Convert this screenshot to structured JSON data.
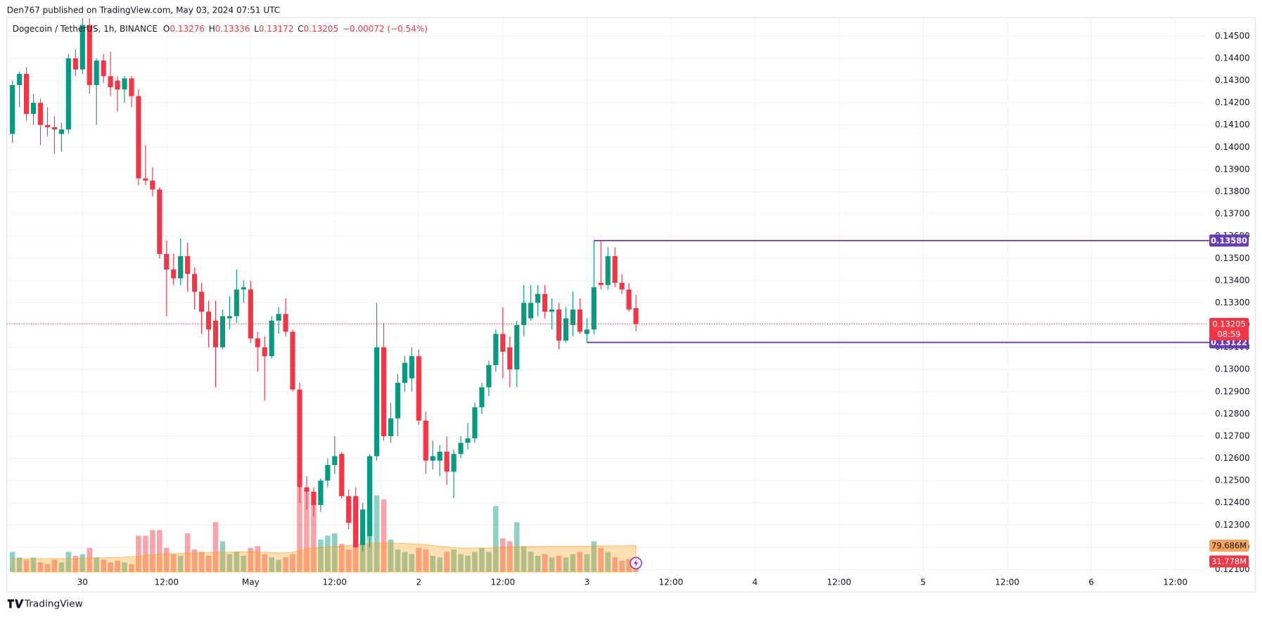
{
  "header": "Den767 published on TradingView.com, May 03, 2024 07:51 UTC",
  "footer": "TradingView",
  "chart_data": {
    "type": "candlestick",
    "title": "Dogecoin / TetherUS, 1h, BINANCE",
    "ohlc_letters": [
      "O",
      "H",
      "L",
      "C"
    ],
    "change": "−0.00072 (−0.54%)",
    "up_color": "#089981",
    "down_color": "#f23645",
    "grid": true,
    "x": [
      0,
      1,
      2,
      3,
      4,
      5,
      6,
      7,
      8,
      9,
      10,
      11,
      12,
      13,
      14,
      15,
      16,
      17,
      18,
      19,
      20,
      21,
      22,
      23,
      24,
      25,
      26,
      27,
      28,
      29,
      30,
      31,
      32,
      33,
      34,
      35,
      36,
      37,
      38,
      39,
      40,
      41,
      42,
      43,
      44,
      45,
      46,
      47,
      48,
      49,
      50,
      51,
      52,
      53,
      54,
      55,
      56,
      57,
      58,
      59,
      60,
      61,
      62,
      63,
      64,
      65,
      66,
      67,
      68,
      69,
      70,
      71,
      72,
      73,
      74,
      75,
      76,
      77,
      78,
      79,
      80,
      81,
      82,
      83,
      84,
      85,
      86,
      87,
      88,
      89
    ],
    "xlim": [
      -0.8,
      170.5
    ],
    "xticks": [
      {
        "value": 10,
        "label": "30"
      },
      {
        "value": 22,
        "label": "12:00"
      },
      {
        "value": 34,
        "label": "May"
      },
      {
        "value": 46,
        "label": "12:00"
      },
      {
        "value": 58,
        "label": "2"
      },
      {
        "value": 70,
        "label": "12:00"
      },
      {
        "value": 82,
        "label": "3"
      },
      {
        "value": 94,
        "label": "12:00"
      },
      {
        "value": 106,
        "label": "4"
      },
      {
        "value": 118,
        "label": "12:00"
      },
      {
        "value": 130,
        "label": "5"
      },
      {
        "value": 142,
        "label": "12:00"
      },
      {
        "value": 154,
        "label": "6"
      },
      {
        "value": 166,
        "label": "12:00"
      }
    ],
    "open": [
      0.1406,
      0.1428,
      0.1433,
      0.1415,
      0.142,
      0.141,
      0.1409,
      0.1406,
      0.1408,
      0.144,
      0.1435,
      0.1455,
      0.1428,
      0.1439,
      0.1432,
      0.143,
      0.1426,
      0.1431,
      0.1423,
      0.1386,
      0.1385,
      0.1381,
      0.1352,
      0.1345,
      0.1341,
      0.1351,
      0.1343,
      0.1335,
      0.1326,
      0.1322,
      0.131,
      0.1323,
      0.1324,
      0.1336,
      0.1336,
      0.1314,
      0.131,
      0.1306,
      0.1322,
      0.1325,
      0.1317,
      0.1291,
      0.1247,
      0.1245,
      0.1239,
      0.125,
      0.1257,
      0.1262,
      0.1243,
      0.1243,
      0.1221,
      0.1225,
      0.1261,
      0.131,
      0.127,
      0.1278,
      0.1294,
      0.1296,
      0.1306,
      0.1277,
      0.1259,
      0.1259,
      0.1263,
      0.1254,
      0.1262,
      0.1267,
      0.1269,
      0.1283,
      0.1292,
      0.1302,
      0.1316,
      0.131,
      0.13,
      0.132,
      0.1323,
      0.133,
      0.1334,
      0.1326,
      0.1327,
      0.1313,
      0.132,
      0.1327,
      0.1316,
      0.1318,
      0.1339,
      0.1338,
      0.1351,
      0.1339,
      0.1336,
      0.13276
    ],
    "high": [
      0.143,
      0.1434,
      0.1436,
      0.1424,
      0.1422,
      0.1418,
      0.1414,
      0.1411,
      0.1442,
      0.1444,
      0.1458,
      0.1458,
      0.144,
      0.1442,
      0.1443,
      0.1432,
      0.1432,
      0.1432,
      0.1426,
      0.1401,
      0.1391,
      0.1382,
      0.1358,
      0.1352,
      0.1359,
      0.1357,
      0.1346,
      0.1339,
      0.1331,
      0.1331,
      0.1327,
      0.1333,
      0.1345,
      0.134,
      0.134,
      0.1317,
      0.1315,
      0.1324,
      0.1328,
      0.1332,
      0.1318,
      0.1294,
      0.1252,
      0.1247,
      0.1251,
      0.126,
      0.127,
      0.1263,
      0.1246,
      0.1247,
      0.124,
      0.1262,
      0.133,
      0.1321,
      0.1285,
      0.1298,
      0.1306,
      0.131,
      0.1309,
      0.1281,
      0.1268,
      0.1266,
      0.127,
      0.1264,
      0.127,
      0.1276,
      0.1285,
      0.1294,
      0.1304,
      0.1318,
      0.1328,
      0.1315,
      0.1322,
      0.1338,
      0.1338,
      0.1338,
      0.1338,
      0.1332,
      0.133,
      0.1328,
      0.1335,
      0.1332,
      0.1323,
      0.1358,
      0.1358,
      0.1355,
      0.1355,
      0.1343,
      0.1339,
      0.13336
    ],
    "low": [
      0.1402,
      0.1418,
      0.1412,
      0.141,
      0.1401,
      0.1405,
      0.1397,
      0.1398,
      0.1406,
      0.1432,
      0.1433,
      0.1424,
      0.141,
      0.1429,
      0.1423,
      0.1416,
      0.142,
      0.1418,
      0.1383,
      0.1383,
      0.1378,
      0.135,
      0.1324,
      0.1338,
      0.1338,
      0.1335,
      0.1327,
      0.1316,
      0.131,
      0.1292,
      0.1309,
      0.1318,
      0.1321,
      0.133,
      0.1312,
      0.1299,
      0.1286,
      0.1305,
      0.1316,
      0.1315,
      0.129,
      0.124,
      0.1237,
      0.1234,
      0.1236,
      0.1247,
      0.1253,
      0.1242,
      0.1228,
      0.122,
      0.1218,
      0.122,
      0.1259,
      0.1268,
      0.1267,
      0.127,
      0.129,
      0.129,
      0.1275,
      0.1253,
      0.1255,
      0.1252,
      0.1248,
      0.1242,
      0.126,
      0.1264,
      0.1267,
      0.128,
      0.1288,
      0.1299,
      0.1296,
      0.1292,
      0.1292,
      0.1315,
      0.1322,
      0.1324,
      0.1323,
      0.1318,
      0.1309,
      0.1312,
      0.1315,
      0.1316,
      0.1312,
      0.1316,
      0.1336,
      0.1336,
      0.1337,
      0.1334,
      0.1326,
      0.13172
    ],
    "close": [
      0.1428,
      0.1433,
      0.1415,
      0.142,
      0.141,
      0.1409,
      0.1408,
      0.1408,
      0.144,
      0.1435,
      0.1455,
      0.1428,
      0.1439,
      0.1432,
      0.1427,
      0.1426,
      0.1431,
      0.1423,
      0.1386,
      0.1385,
      0.1381,
      0.1352,
      0.1345,
      0.1341,
      0.1351,
      0.1343,
      0.1335,
      0.1326,
      0.1318,
      0.131,
      0.1324,
      0.1324,
      0.1336,
      0.1337,
      0.1314,
      0.131,
      0.1306,
      0.1322,
      0.1325,
      0.1317,
      0.1291,
      0.1247,
      0.1245,
      0.1239,
      0.125,
      0.1257,
      0.1261,
      0.1243,
      0.1231,
      0.122,
      0.1237,
      0.1261,
      0.131,
      0.127,
      0.1278,
      0.1294,
      0.1303,
      0.1306,
      0.1277,
      0.1259,
      0.1261,
      0.1263,
      0.1254,
      0.1262,
      0.1267,
      0.1269,
      0.1283,
      0.1292,
      0.1302,
      0.1316,
      0.1308,
      0.13,
      0.132,
      0.133,
      0.133,
      0.1334,
      0.1326,
      0.1327,
      0.1313,
      0.1323,
      0.1327,
      0.1317,
      0.1318,
      0.1337,
      0.1338,
      0.1351,
      0.1339,
      0.1336,
      0.1327,
      0.13205
    ],
    "ylim": [
      0.12089,
      0.14583
    ],
    "yticks": [
      {
        "value": 0.121,
        "label": "0.12100"
      },
      {
        "value": 0.122,
        "label": "0.12200"
      },
      {
        "value": 0.123,
        "label": "0.12300"
      },
      {
        "value": 0.124,
        "label": "0.12400"
      },
      {
        "value": 0.125,
        "label": "0.12500"
      },
      {
        "value": 0.126,
        "label": "0.12600"
      },
      {
        "value": 0.127,
        "label": "0.12700"
      },
      {
        "value": 0.128,
        "label": "0.12800"
      },
      {
        "value": 0.129,
        "label": "0.12900"
      },
      {
        "value": 0.13,
        "label": "0.13000"
      },
      {
        "value": 0.131,
        "label": "0.13100"
      },
      {
        "value": 0.132,
        "label": "0.13200"
      },
      {
        "value": 0.133,
        "label": "0.13300"
      },
      {
        "value": 0.134,
        "label": "0.13400"
      },
      {
        "value": 0.135,
        "label": "0.13500"
      },
      {
        "value": 0.136,
        "label": "0.13600"
      },
      {
        "value": 0.137,
        "label": "0.13700"
      },
      {
        "value": 0.138,
        "label": "0.13800"
      },
      {
        "value": 0.139,
        "label": "0.13900"
      },
      {
        "value": 0.14,
        "label": "0.14000"
      },
      {
        "value": 0.141,
        "label": "0.14100"
      },
      {
        "value": 0.142,
        "label": "0.14200"
      },
      {
        "value": 0.143,
        "label": "0.14300"
      },
      {
        "value": 0.144,
        "label": "0.14400"
      },
      {
        "value": 0.145,
        "label": "0.14500"
      }
    ],
    "levels": [
      {
        "x": 83,
        "value": 0.1358,
        "label": "0.13580",
        "color": "#673ab7"
      },
      {
        "x": 82,
        "value": 0.13122,
        "label": "0.13122",
        "color": "#673ab7"
      }
    ],
    "last_price": {
      "value": 0.13205,
      "label": "0.13205",
      "countdown": "08:59"
    },
    "volume": [
      61,
      44,
      37,
      44,
      29,
      24,
      37,
      29,
      61,
      49,
      54,
      73,
      44,
      37,
      29,
      34,
      29,
      24,
      110,
      110,
      127,
      127,
      73,
      54,
      49,
      117,
      68,
      61,
      49,
      151,
      93,
      54,
      61,
      49,
      73,
      78,
      54,
      44,
      37,
      44,
      54,
      256,
      244,
      207,
      98,
      110,
      117,
      85,
      68,
      166,
      110,
      207,
      232,
      220,
      98,
      68,
      61,
      54,
      73,
      68,
      49,
      44,
      61,
      68,
      54,
      49,
      61,
      73,
      61,
      200,
      102,
      93,
      151,
      78,
      61,
      49,
      54,
      44,
      49,
      44,
      54,
      61,
      54,
      93,
      73,
      61,
      44,
      34,
      39,
      31.778
    ],
    "volume_ma": [
      40,
      40,
      40,
      40,
      40,
      40,
      40,
      40,
      40,
      40,
      42,
      42,
      43,
      43,
      44,
      44,
      45,
      46,
      48,
      50,
      52,
      54,
      55,
      55,
      56,
      57,
      58,
      58,
      59,
      60,
      60,
      60,
      61,
      61,
      61,
      60,
      60,
      59,
      58,
      58,
      60,
      65,
      70,
      72,
      74,
      76,
      78,
      78,
      80,
      82,
      84,
      86,
      88,
      88,
      88,
      87,
      86,
      85,
      84,
      83,
      80,
      78,
      76,
      74,
      72,
      72,
      72,
      72,
      72,
      74,
      75,
      76,
      76,
      77,
      77,
      77,
      77,
      78,
      78,
      78,
      78,
      78,
      78,
      79,
      79,
      79,
      79,
      79,
      79.5,
      79.686
    ],
    "volume_ma_color": "#ff9800",
    "y2lim": [
      0,
      1681
    ],
    "volume_labels": [
      {
        "value": 79.686,
        "label": "79.686M",
        "color": "#f7a35c"
      },
      {
        "value": 31.778,
        "label": "31.778M",
        "color": "#f23645"
      }
    ]
  }
}
